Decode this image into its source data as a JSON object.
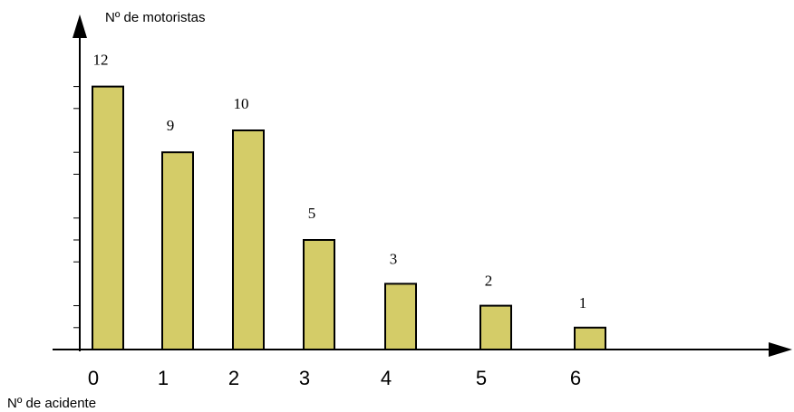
{
  "chart_data": {
    "type": "bar",
    "ylabel": "Nº de motoristas",
    "xlabel": "Nº de acidente",
    "categories": [
      "0",
      "1",
      "2",
      "3",
      "4",
      "5",
      "6"
    ],
    "values": [
      12,
      9,
      10,
      5,
      3,
      2,
      1
    ],
    "data_labels": [
      "12",
      "9",
      "10",
      "5",
      "3",
      "2",
      "1"
    ],
    "bar_color": "#d4cc68",
    "bar_edge_color": "#000000",
    "grid": false,
    "legend": "none"
  }
}
